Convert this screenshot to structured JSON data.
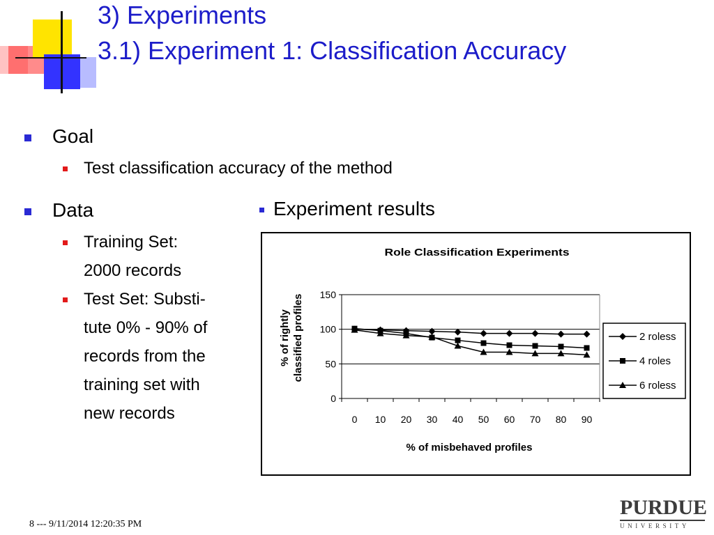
{
  "title": {
    "line1": "3) Experiments",
    "line2": "3.1) Experiment 1: Classification Accuracy"
  },
  "goal": {
    "heading": "Goal",
    "items": [
      "Test classification accuracy of the method"
    ]
  },
  "data_section": {
    "heading": "Data",
    "training_lines": [
      "Training Set:",
      "2000 records"
    ],
    "test_lines": [
      "Test Set: Substi-",
      "tute 0% - 90% of",
      "records from the",
      "training set with",
      "new records"
    ]
  },
  "experiment_label": "Experiment results",
  "chart_data": {
    "type": "line",
    "title": "Role Classification Experiments",
    "xlabel": "% of misbehaved profiles",
    "ylabel_lines": [
      "% of rightly",
      "classified profiles"
    ],
    "categories": [
      "0",
      "10",
      "20",
      "30",
      "40",
      "50",
      "60",
      "70",
      "80",
      "90"
    ],
    "ylim": [
      0,
      150
    ],
    "yticks": [
      0,
      50,
      100,
      150
    ],
    "grid": true,
    "legend_position": "right",
    "series": [
      {
        "name": "2 roless",
        "marker": "diamond",
        "values": [
          100,
          99,
          98,
          97,
          96,
          94,
          94,
          94,
          93,
          93
        ]
      },
      {
        "name": "4 roles",
        "marker": "square",
        "values": [
          101,
          98,
          94,
          88,
          84,
          80,
          77,
          76,
          75,
          73
        ]
      },
      {
        "name": "6 roless",
        "marker": "triangle",
        "values": [
          99,
          94,
          91,
          89,
          76,
          67,
          67,
          65,
          65,
          63
        ]
      }
    ]
  },
  "footer": "8 --- 9/11/2014 12:20:35 PM",
  "logo": {
    "name": "PURDUE",
    "sub": "UNIVERSITY"
  }
}
